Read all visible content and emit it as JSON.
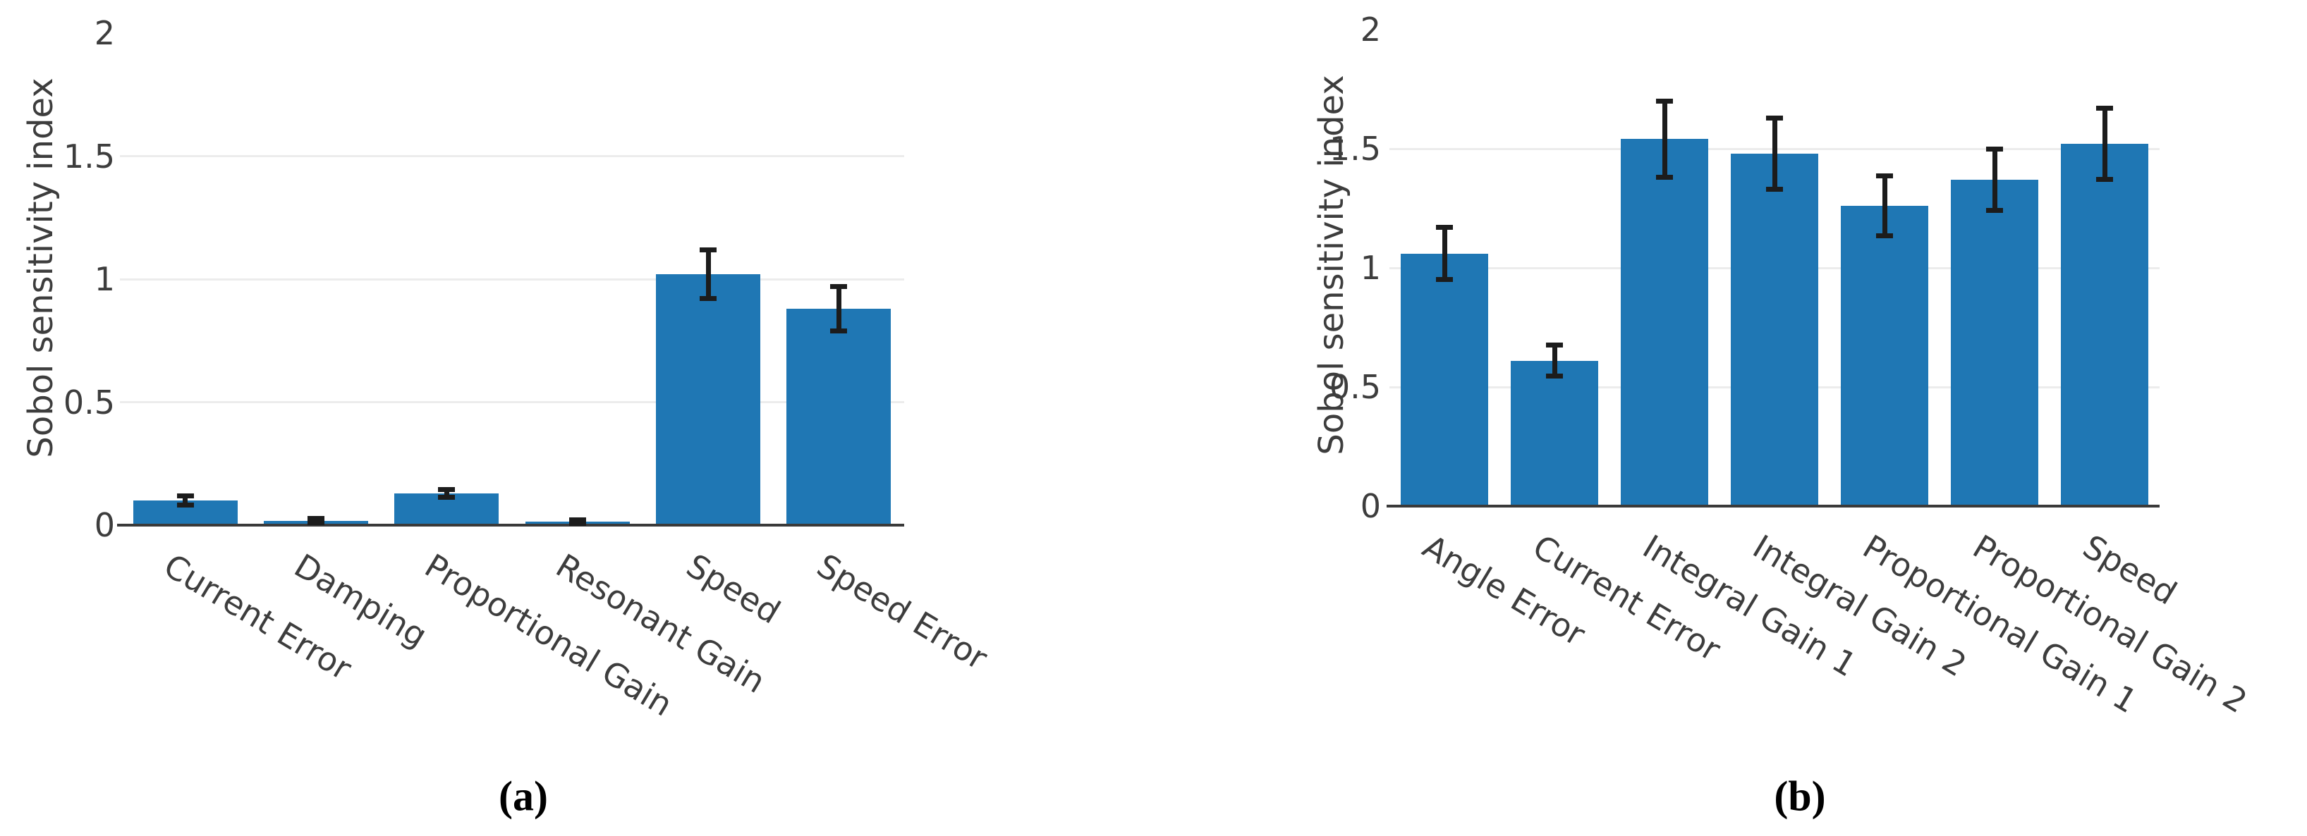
{
  "background": "#ffffff",
  "text_color": "#3d3d3d",
  "axis_color": "#3a3a3a",
  "gridline_color": "#ececec",
  "chart_data": [
    {
      "type": "bar",
      "panel_label": "(a)",
      "title": "",
      "ylabel": "Sobol sensitivity index",
      "xlabel": "",
      "categories": [
        "Current Error",
        "Damping",
        "Proportional Gain",
        "Resonant Gain",
        "Speed",
        "Speed Error"
      ],
      "values": [
        0.1,
        0.018,
        0.13,
        0.014,
        1.02,
        0.88
      ],
      "errors": [
        0.018,
        0.008,
        0.016,
        0.007,
        0.1,
        0.09
      ],
      "ylim": [
        0,
        2
      ],
      "yticks": [
        0,
        0.5,
        1,
        1.5,
        2
      ],
      "grid": "horizontal gridlines at 0.5, 1, 1.5",
      "legend": "none",
      "xtick_rotation_deg": 31,
      "bar_color": "#1f77b4",
      "error_color": "#1c1c1c"
    },
    {
      "type": "bar",
      "panel_label": "(b)",
      "title": "",
      "ylabel": "Sobol sensitivity index",
      "xlabel": "",
      "categories": [
        "Angle Error",
        "Current Error",
        "Integral Gain 1",
        "Integral Gain 2",
        "Proportional Gain 1",
        "Proportional Gain 2",
        "Speed"
      ],
      "values": [
        1.06,
        0.61,
        1.54,
        1.48,
        1.26,
        1.37,
        1.52
      ],
      "errors": [
        0.11,
        0.065,
        0.16,
        0.15,
        0.125,
        0.13,
        0.15
      ],
      "ylim": [
        0,
        2
      ],
      "yticks": [
        0,
        0.5,
        1,
        1.5,
        2
      ],
      "grid": "horizontal gridlines at 0.5, 1, 1.5",
      "legend": "none",
      "xtick_rotation_deg": 31,
      "bar_color": "#1f77b4",
      "error_color": "#1c1c1c"
    }
  ]
}
